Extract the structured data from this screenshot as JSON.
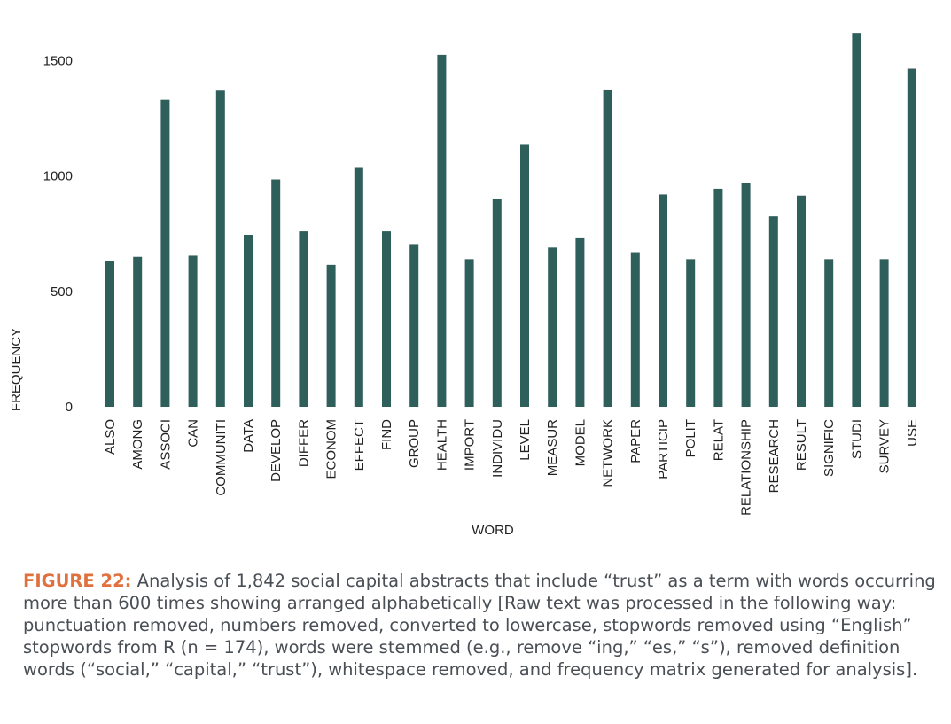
{
  "chart_data": {
    "type": "bar",
    "xlabel": "WORD",
    "ylabel": "FREQUENCY",
    "ylim": [
      0,
      1650
    ],
    "yticks": [
      0,
      500,
      1000,
      1500
    ],
    "grid": false,
    "bar_color": "#2f5f5b",
    "categories": [
      "ALSO",
      "AMONG",
      "ASSOCI",
      "CAN",
      "COMMUNITI",
      "DATA",
      "DEVELOP",
      "DIFFER",
      "ECONOM",
      "EFFECT",
      "FIND",
      "GROUP",
      "HEALTH",
      "IMPORT",
      "INDIVIDU",
      "LEVEL",
      "MEASUR",
      "MODEL",
      "NETWORK",
      "PAPER",
      "PARTICIP",
      "POLIT",
      "RELAT",
      "RELATIONSHIP",
      "RESEARCH",
      "RESULT",
      "SIGNIFIC",
      "STUDI",
      "SURVEY",
      "USE"
    ],
    "values": [
      630,
      650,
      1330,
      655,
      1370,
      745,
      985,
      760,
      615,
      1035,
      760,
      705,
      1525,
      640,
      900,
      1135,
      690,
      730,
      1375,
      670,
      920,
      640,
      945,
      970,
      825,
      915,
      640,
      1620,
      640,
      1465
    ]
  },
  "caption": {
    "label": "FIGURE 22:",
    "text": " Analysis of 1,842 social capital abstracts that include “trust” as a term with words occurring more than 600 times showing arranged alphabetically [Raw text was processed in the following way: punctuation removed, numbers removed, converted to lowercase, stopwords removed using “English” stopwords from R (n = 174), words were stemmed (e.g., remove “ing,” “es,” “s”), removed definition words (“social,” “capital,” “trust”), whitespace removed, and frequency matrix generated for analysis]."
  },
  "colors": {
    "accent": "#e0703e",
    "bar": "#2f5f5b",
    "caption_text": "#4a4f55"
  }
}
